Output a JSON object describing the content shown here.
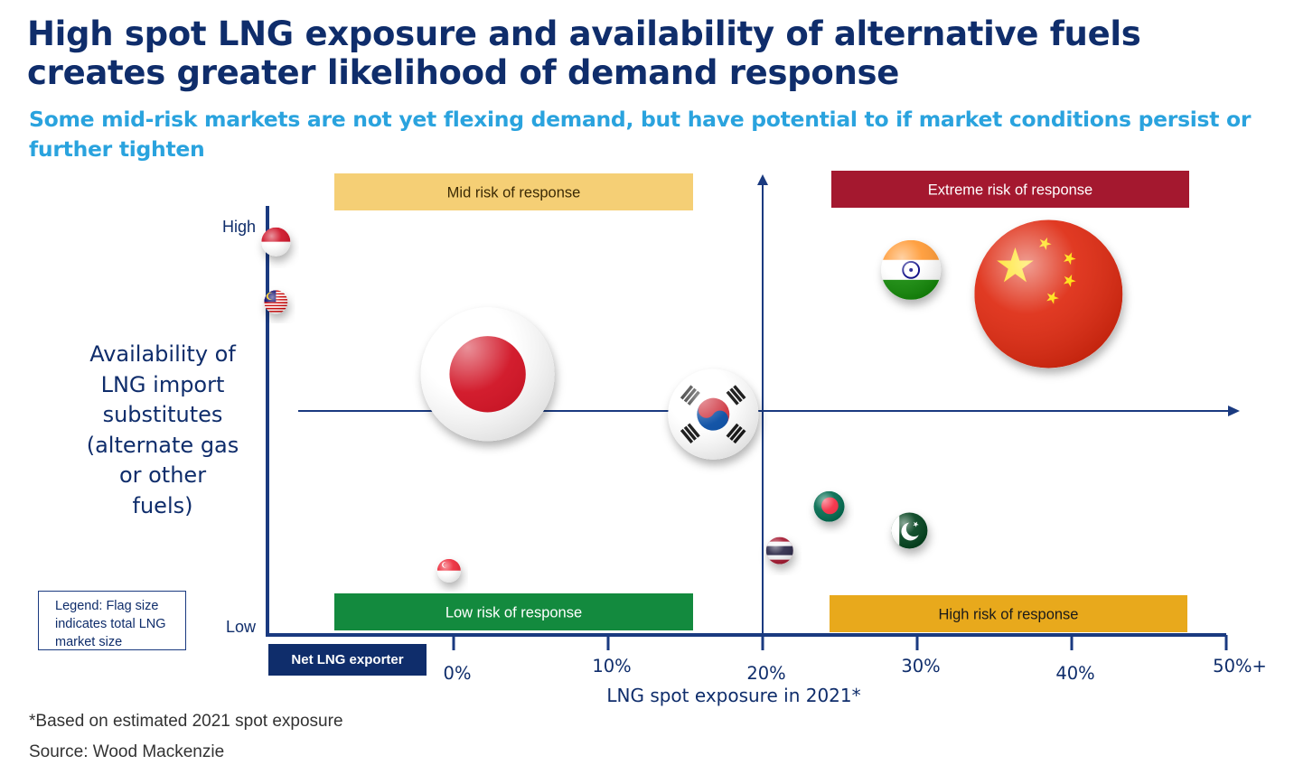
{
  "title": "High spot LNG exposure and availability of alternative fuels creates greater likelihood of demand response",
  "subtitle": "Some mid-risk markets are not yet flexing demand, but have potential to if market conditions persist or further tighten",
  "footnote": "*Based on estimated 2021 spot exposure",
  "source": "Source: Wood Mackenzie",
  "legend_text": "Legend: Flag size indicates total LNG market size",
  "exporter_label": "Net LNG exporter",
  "colors": {
    "title": "#0f2d6b",
    "subtitle": "#2aa3de",
    "axis": "#1a3a80",
    "mid": "#f5cf75",
    "extreme": "#a4182f",
    "low": "#138a3e",
    "high": "#e8a91c"
  },
  "chart_data": {
    "type": "scatter",
    "xlabel": "LNG spot exposure in 2021*",
    "ylabel": "Availability of LNG import substitutes (alternate gas or other fuels)",
    "x_ticks": [
      "0%",
      "10%",
      "20%",
      "30%",
      "40%",
      "50%+"
    ],
    "x_tick_values": [
      0,
      10,
      20,
      30,
      40,
      50
    ],
    "xlim": [
      -12,
      50
    ],
    "y_ticks": [
      "High",
      "Low"
    ],
    "ylim": [
      0,
      100
    ],
    "quadrants": [
      {
        "label": "Mid risk of response",
        "color": "#f5cf75",
        "text_color": "#3b2a05"
      },
      {
        "label": "Extreme risk of response",
        "color": "#a4182f",
        "text_color": "#ffffff"
      },
      {
        "label": "Low risk of response",
        "color": "#138a3e",
        "text_color": "#ffffff"
      },
      {
        "label": "High risk of response",
        "color": "#e8a91c",
        "text_color": "#1a1a1a"
      }
    ],
    "points": [
      {
        "flag": "indonesia-flag",
        "x": -11.5,
        "y": 96,
        "size": 0.16
      },
      {
        "flag": "malaysia-flag",
        "x": -11.5,
        "y": 81,
        "size": 0.13
      },
      {
        "flag": "singapore-flag",
        "x": -0.3,
        "y": 14,
        "size": 0.13
      },
      {
        "flag": "japan-flag",
        "x": 2.2,
        "y": 63,
        "size": 0.74
      },
      {
        "flag": "korea-flag",
        "x": 16.8,
        "y": 53,
        "size": 0.5
      },
      {
        "flag": "china-flag",
        "x": 38.5,
        "y": 83,
        "size": 0.82
      },
      {
        "flag": "india-flag",
        "x": 29.6,
        "y": 89,
        "size": 0.33
      },
      {
        "flag": "bangladesh-flag",
        "x": 24.3,
        "y": 30,
        "size": 0.17
      },
      {
        "flag": "pakistan-flag",
        "x": 29.5,
        "y": 24,
        "size": 0.2
      },
      {
        "flag": "thailand-flag",
        "x": 21.1,
        "y": 19,
        "size": 0.15
      }
    ]
  }
}
